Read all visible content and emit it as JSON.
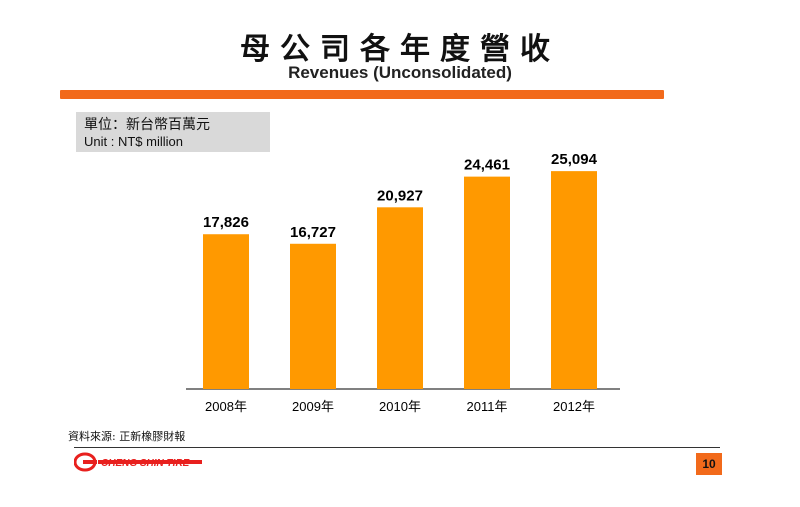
{
  "header": {
    "title_zh": "母公司各年度營收",
    "title_en": "Revenues (Unconsolidated)"
  },
  "unit": {
    "zh": "單位：新台幣百萬元",
    "en": "Unit : NT$ million"
  },
  "chart_data": {
    "type": "bar",
    "categories": [
      "2008年",
      "2009年",
      "2010年",
      "2011年",
      "2012年"
    ],
    "values": [
      17826,
      16727,
      20927,
      24461,
      25094
    ],
    "value_labels": [
      "17,826",
      "16,727",
      "20,927",
      "24,461",
      "25,094"
    ],
    "title": "母公司各年度營收",
    "subtitle": "Revenues (Unconsolidated)",
    "xlabel": "",
    "ylabel": "",
    "ylim": [
      0,
      25800
    ],
    "grid": false,
    "legend": "none",
    "bar_color": "#ff9900"
  },
  "footer": {
    "source": "資料來源: 正新橡膠財報",
    "page_number": "10",
    "logo_text": "CHENG SHIN TIRE"
  },
  "colors": {
    "accent": "#f26a1b",
    "bar": "#ff9900",
    "unit_box": "#d9d9d9"
  }
}
